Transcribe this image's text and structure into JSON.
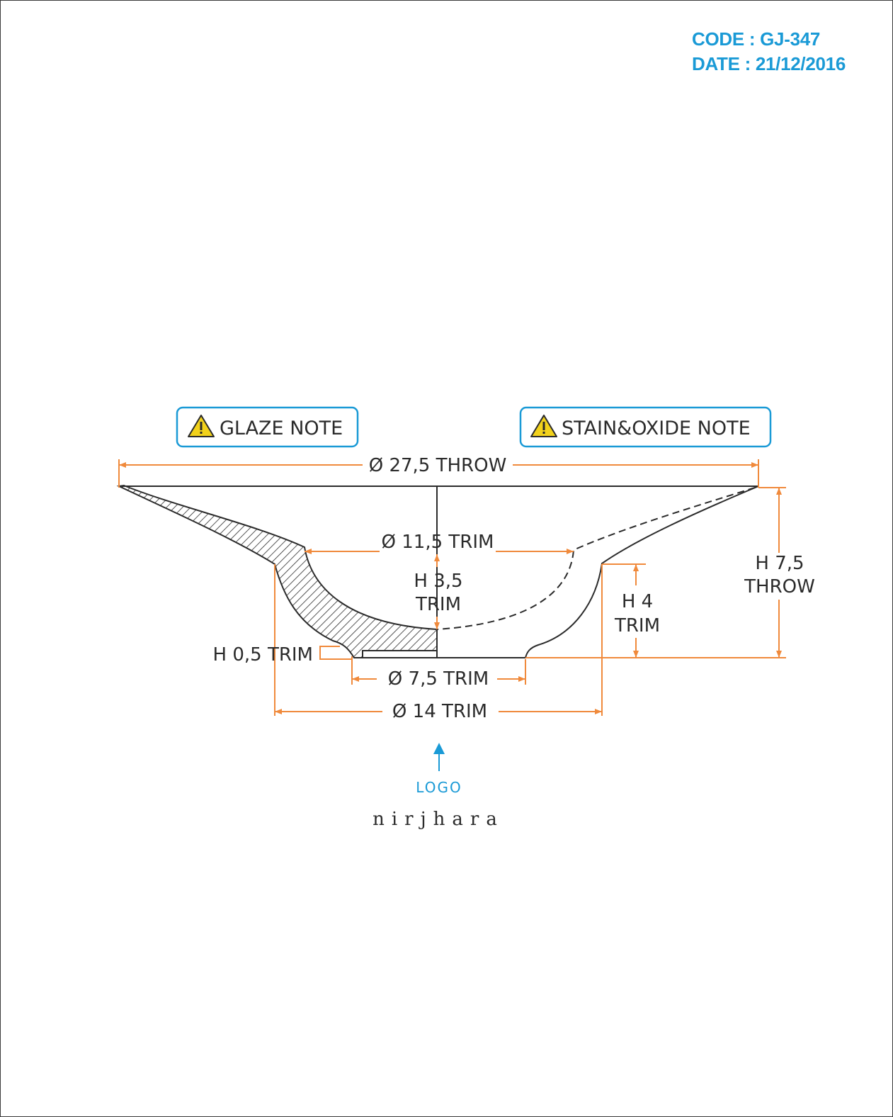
{
  "header": {
    "code": "CODE : GJ-347",
    "date": "DATE : 21/12/2016"
  },
  "notes": {
    "glaze": "GLAZE NOTE",
    "stain": "STAIN&OXIDE NOTE",
    "icon": "warning-triangle-icon"
  },
  "dimensions": {
    "throw_diameter": "Ø 27,5 THROW",
    "trim_diameter_top": "Ø 11,5 TRIM",
    "h_trim_inner_line1": "H 3,5",
    "h_trim_inner_line2": "TRIM",
    "h_throw_line1": "H 7,5",
    "h_throw_line2": "THROW",
    "h_trim_outer_line1": "H 4",
    "h_trim_outer_line2": "TRIM",
    "h_foot": "H 0,5 TRIM",
    "foot_diameter": "Ø 7,5 TRIM",
    "base_diameter": "Ø 14 TRIM"
  },
  "logo": {
    "label": "LOGO",
    "brand": "nirjhara"
  },
  "colors": {
    "dimension": "#f08a3c",
    "accent": "#1a9ad6",
    "line": "#2b2b2b",
    "warning": "#f2d21b"
  }
}
